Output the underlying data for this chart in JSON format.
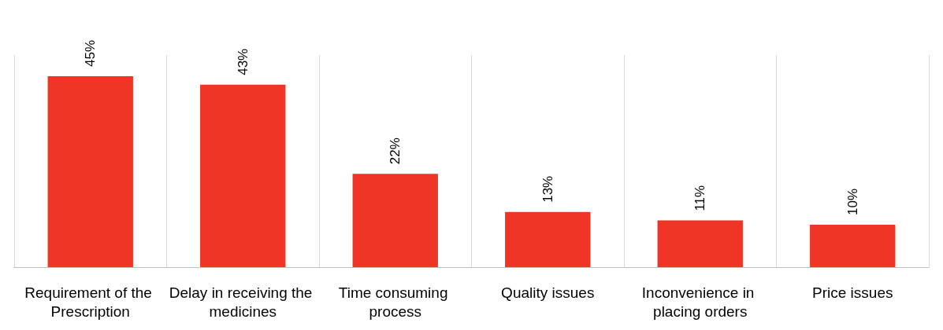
{
  "chart_data": {
    "type": "bar",
    "categories": [
      "Requirement of the Prescription",
      "Delay in receiving the medicines",
      "Time consuming process",
      "Quality issues",
      "Inconvenience in placing orders",
      "Price issues"
    ],
    "values": [
      45,
      43,
      22,
      13,
      11,
      10
    ],
    "value_labels": [
      "45%",
      "43%",
      "22%",
      "13%",
      "11%",
      "10%"
    ],
    "color": "#ee3526",
    "grid": "x"
  }
}
